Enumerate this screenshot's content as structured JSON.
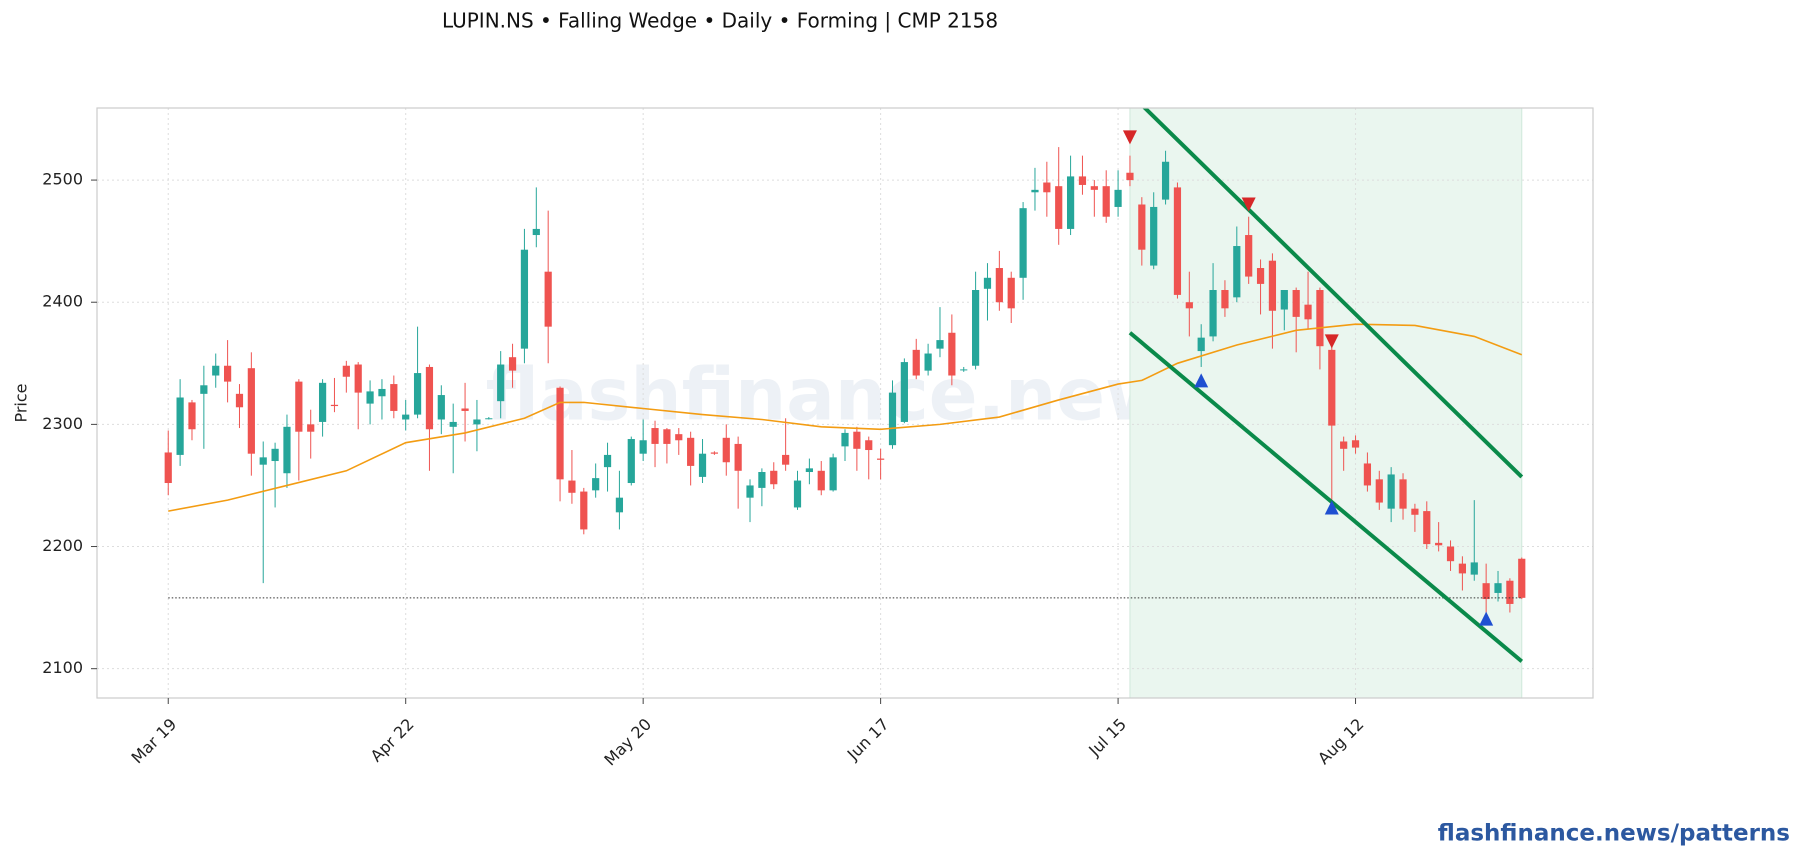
{
  "chart_data": {
    "type": "candlestick",
    "title": "LUPIN.NS  •  Falling Wedge  •  Daily  •  Forming  |  CMP 2158",
    "y_label": "Price",
    "watermark": "flashfinance.news",
    "footer": "flashfinance.news/patterns",
    "up_color": "#26a69a",
    "down_color": "#ef5350",
    "open": [
      2277,
      2275,
      2318,
      2325,
      2340,
      2348,
      2325,
      2346,
      2267,
      2270,
      2260,
      2335,
      2300,
      2302,
      2316,
      2348,
      2349,
      2317,
      2323,
      2333,
      2304,
      2308,
      2347,
      2304,
      2298,
      2313,
      2300,
      2305,
      2319,
      2355,
      2362,
      2455,
      2425,
      2330,
      2254,
      2245,
      2246,
      2265,
      2228,
      2252,
      2276,
      2297,
      2296,
      2292,
      2289,
      2257,
      2277,
      2289,
      2284,
      2240,
      2248,
      2262,
      2275,
      2232,
      2261,
      2262,
      2246,
      2282,
      2294,
      2287,
      2272,
      2283,
      2302,
      2361,
      2344,
      2362,
      2375,
      2345,
      2348,
      2411,
      2428,
      2420,
      2420,
      2490,
      2498,
      2495,
      2460,
      2503,
      2495,
      2495,
      2478,
      2506,
      2480,
      2430,
      2484,
      2494,
      2400,
      2360,
      2372,
      2410,
      2404,
      2455,
      2428,
      2434,
      2394,
      2410,
      2398,
      2410,
      2361,
      2286,
      2287,
      2268,
      2255,
      2231,
      2255,
      2231,
      2229,
      2203,
      2200,
      2186,
      2177,
      2170,
      2162,
      2172,
      2190
    ],
    "high": [
      2295,
      2337,
      2320,
      2348,
      2358,
      2369,
      2333,
      2359,
      2286,
      2285,
      2308,
      2337,
      2312,
      2337,
      2338,
      2352,
      2351,
      2336,
      2337,
      2340,
      2320,
      2380,
      2349,
      2332,
      2317,
      2334,
      2320,
      2306,
      2360,
      2366,
      2460,
      2494,
      2475,
      2331,
      2279,
      2248,
      2268,
      2285,
      2262,
      2290,
      2304,
      2303,
      2297,
      2297,
      2294,
      2288,
      2278,
      2300,
      2290,
      2255,
      2264,
      2269,
      2305,
      2262,
      2272,
      2270,
      2276,
      2296,
      2298,
      2290,
      2280,
      2336,
      2354,
      2370,
      2366,
      2396,
      2390,
      2347,
      2425,
      2432,
      2442,
      2425,
      2482,
      2510,
      2515,
      2527,
      2520,
      2520,
      2500,
      2508,
      2508,
      2520,
      2486,
      2490,
      2524,
      2498,
      2425,
      2382,
      2432,
      2418,
      2462,
      2470,
      2435,
      2440,
      2410,
      2412,
      2425,
      2412,
      2365,
      2290,
      2291,
      2277,
      2262,
      2265,
      2260,
      2235,
      2237,
      2220,
      2205,
      2192,
      2238,
      2186,
      2180,
      2174,
      2191
    ],
    "low": [
      2242,
      2266,
      2287,
      2280,
      2330,
      2318,
      2297,
      2258,
      2170,
      2232,
      2248,
      2254,
      2272,
      2290,
      2310,
      2326,
      2296,
      2300,
      2304,
      2305,
      2295,
      2305,
      2262,
      2292,
      2260,
      2286,
      2278,
      2304,
      2305,
      2330,
      2350,
      2445,
      2350,
      2237,
      2235,
      2210,
      2240,
      2245,
      2214,
      2250,
      2270,
      2265,
      2268,
      2275,
      2250,
      2252,
      2275,
      2258,
      2231,
      2220,
      2233,
      2247,
      2262,
      2230,
      2251,
      2242,
      2245,
      2270,
      2262,
      2255,
      2255,
      2280,
      2301,
      2337,
      2340,
      2355,
      2332,
      2343,
      2345,
      2385,
      2393,
      2383,
      2402,
      2475,
      2470,
      2447,
      2455,
      2488,
      2470,
      2465,
      2470,
      2495,
      2430,
      2427,
      2480,
      2403,
      2372,
      2347,
      2368,
      2388,
      2400,
      2415,
      2390,
      2362,
      2377,
      2359,
      2378,
      2345,
      2237,
      2262,
      2276,
      2245,
      2230,
      2220,
      2222,
      2212,
      2198,
      2196,
      2180,
      2164,
      2172,
      2144,
      2155,
      2146,
      2157
    ],
    "close": [
      2252,
      2322,
      2296,
      2332,
      2348,
      2335,
      2314,
      2276,
      2273,
      2280,
      2298,
      2294,
      2294,
      2334,
      2315,
      2339,
      2326,
      2327,
      2329,
      2311,
      2308,
      2342,
      2296,
      2324,
      2302,
      2311,
      2304,
      2305,
      2349,
      2344,
      2443,
      2460,
      2380,
      2255,
      2244,
      2214,
      2256,
      2275,
      2240,
      2288,
      2287,
      2284,
      2284,
      2287,
      2266,
      2276,
      2276,
      2269,
      2262,
      2250,
      2261,
      2251,
      2267,
      2254,
      2264,
      2246,
      2273,
      2293,
      2280,
      2279,
      2271,
      2326,
      2351,
      2340,
      2358,
      2369,
      2340,
      2345,
      2410,
      2420,
      2400,
      2395,
      2477,
      2492,
      2490,
      2460,
      2503,
      2496,
      2492,
      2470,
      2492,
      2500,
      2443,
      2478,
      2515,
      2406,
      2395,
      2371,
      2410,
      2395,
      2446,
      2421,
      2415,
      2393,
      2410,
      2388,
      2386,
      2364,
      2299,
      2280,
      2281,
      2250,
      2236,
      2259,
      2231,
      2226,
      2202,
      2201,
      2188,
      2178,
      2187,
      2157,
      2170,
      2153,
      2158
    ],
    "ma": {
      "color": "#f39c12",
      "x": [
        0,
        5,
        10,
        15,
        20,
        25,
        30,
        33,
        35,
        40,
        45,
        50,
        55,
        60,
        65,
        70,
        75,
        80,
        82,
        85,
        90,
        95,
        100,
        105,
        110,
        114
      ],
      "values": [
        2229,
        2238,
        2250,
        2262,
        2285,
        2293,
        2305,
        2318,
        2318,
        2313,
        2308,
        2304,
        2298,
        2296,
        2300,
        2306,
        2320,
        2333,
        2336,
        2350,
        2365,
        2377,
        2382,
        2381,
        2372,
        2357
      ]
    },
    "pattern_shade_x": [
      81,
      114
    ],
    "trendline_color": "#0a8a4a",
    "upper_line": {
      "x": [
        81,
        114
      ],
      "y": [
        2571,
        2257
      ]
    },
    "lower_line": {
      "x": [
        81,
        114
      ],
      "y": [
        2375,
        2106
      ]
    },
    "highs_markers": {
      "color": "#d62728",
      "x": [
        81,
        91,
        98
      ],
      "y": [
        2535,
        2480,
        2368
      ]
    },
    "lows_markers": {
      "color": "#1f4fd1",
      "x": [
        87,
        98,
        111
      ],
      "y": [
        2336,
        2232,
        2141
      ]
    },
    "cmp_line": 2158,
    "xlim": [
      -6,
      120
    ],
    "xticks": [
      {
        "value": 0,
        "label": "Mar 19"
      },
      {
        "value": 20,
        "label": "Apr 22"
      },
      {
        "value": 40,
        "label": "May 20"
      },
      {
        "value": 60,
        "label": "Jun 17"
      },
      {
        "value": 80,
        "label": "Jul 15"
      },
      {
        "value": 100,
        "label": "Aug 12"
      }
    ],
    "ylim": [
      2076,
      2559
    ],
    "yticks": [
      2100,
      2200,
      2300,
      2400,
      2500
    ],
    "grid": true
  }
}
